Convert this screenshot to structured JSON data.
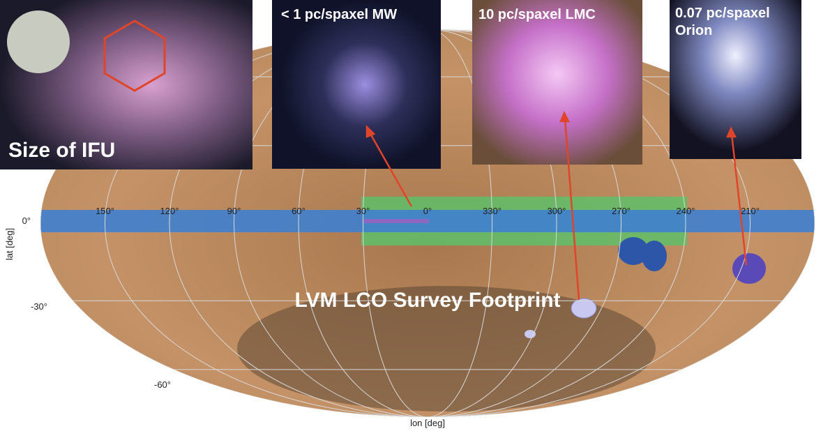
{
  "map": {
    "annotation": "LVM LCO Survey Footprint",
    "xlabel": "lon [deg]",
    "ylabel": "lat [deg]",
    "lon_tick_labels": [
      "150°",
      "120°",
      "90°",
      "60°",
      "30°",
      "0°",
      "330°",
      "300°",
      "270°",
      "240°",
      "210°"
    ],
    "lat_tick_labels": [
      "0°",
      "-30°",
      "-60°"
    ]
  },
  "insets": [
    {
      "lines": [
        "Size of IFU"
      ]
    },
    {
      "lines": [
        "< 1 pc/spaxel MW"
      ]
    },
    {
      "lines": [
        "10 pc/spaxel LMC"
      ]
    },
    {
      "lines": [
        "0.07 pc/spaxel",
        "Orion"
      ]
    }
  ]
}
